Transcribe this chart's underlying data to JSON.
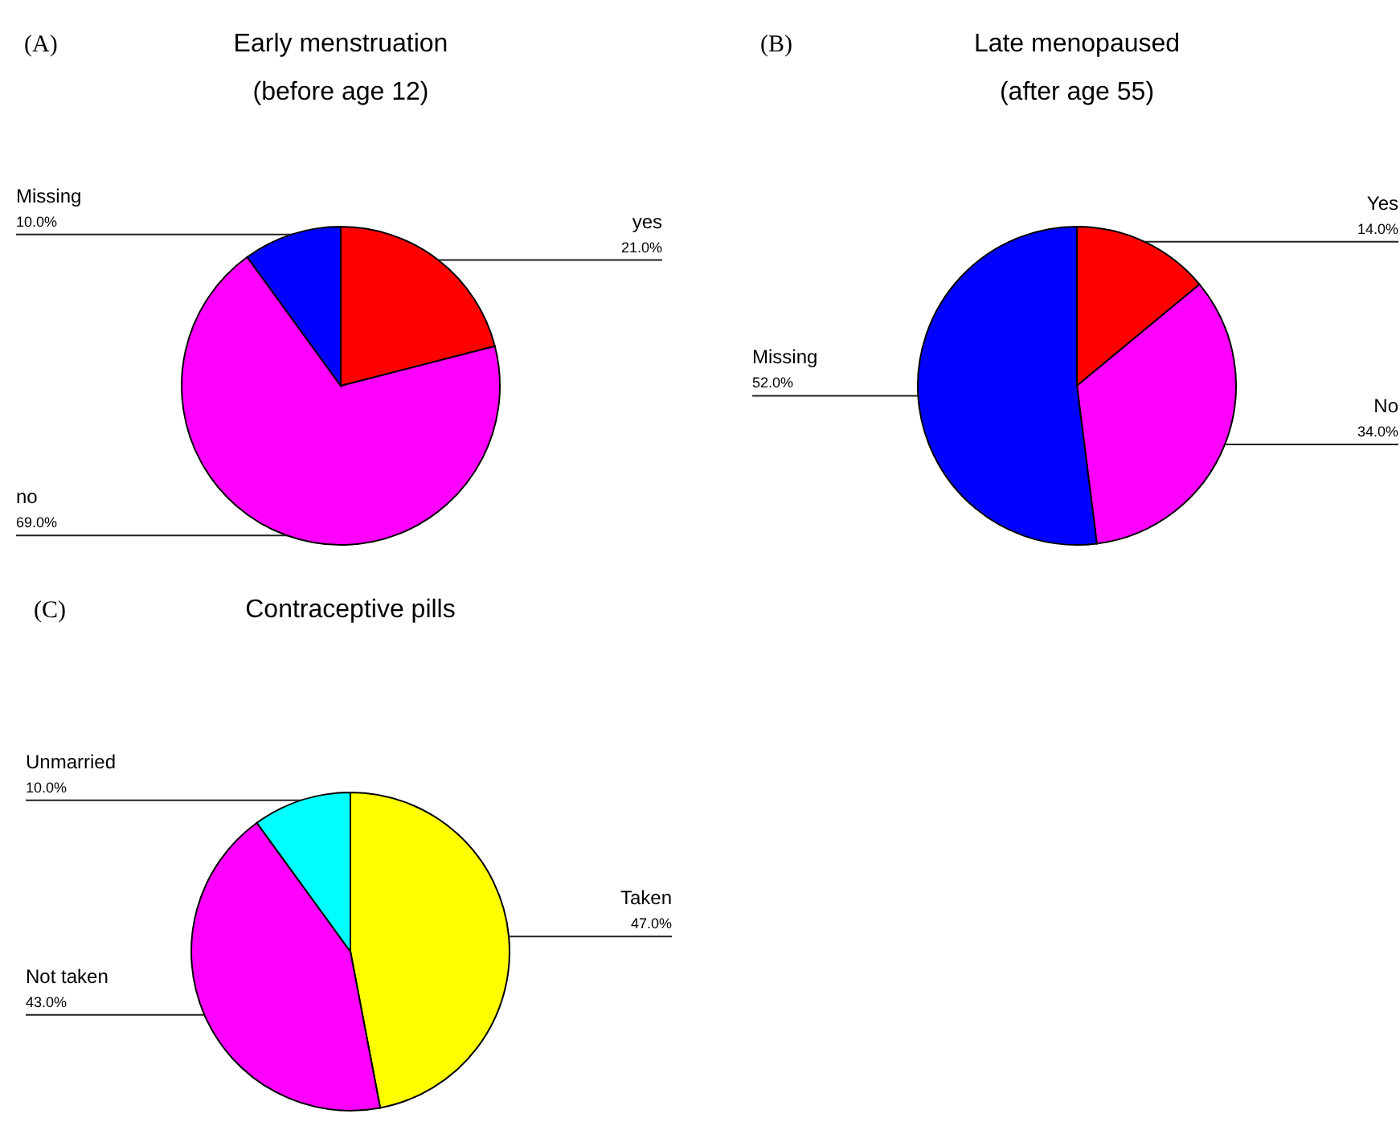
{
  "chart_data": [
    {
      "type": "pie",
      "title": "Early menstruation",
      "subtitle": "(before age 12)",
      "annotations": [
        "(A)"
      ],
      "categories": [
        "yes",
        "no",
        "Missing"
      ],
      "values": [
        21,
        69,
        10
      ],
      "colors": [
        "#ff0000",
        "#ff00ff",
        "#0000ff"
      ],
      "value_labels": [
        "21.0%",
        "69.0%",
        "10.0%"
      ],
      "legend": false
    },
    {
      "type": "pie",
      "title": "Late menopaused",
      "subtitle": "(after age 55)",
      "annotations": [
        "(B)"
      ],
      "categories": [
        "Yes",
        "No",
        "Missing"
      ],
      "values": [
        14,
        34,
        52
      ],
      "colors": [
        "#ff0000",
        "#ff00ff",
        "#0000ff"
      ],
      "value_labels": [
        "14.0%",
        "34.0%",
        "52.0%"
      ],
      "legend": false
    },
    {
      "type": "pie",
      "title": "Contraceptive pills",
      "annotations": [
        "(C)"
      ],
      "categories": [
        "Taken",
        "Not taken",
        "Unmarried"
      ],
      "values": [
        47,
        43,
        10
      ],
      "colors": [
        "#ffff00",
        "#ff00ff",
        "#00ffff"
      ],
      "value_labels": [
        "47.0%",
        "43.0%",
        "10.0%"
      ],
      "legend": false
    }
  ]
}
